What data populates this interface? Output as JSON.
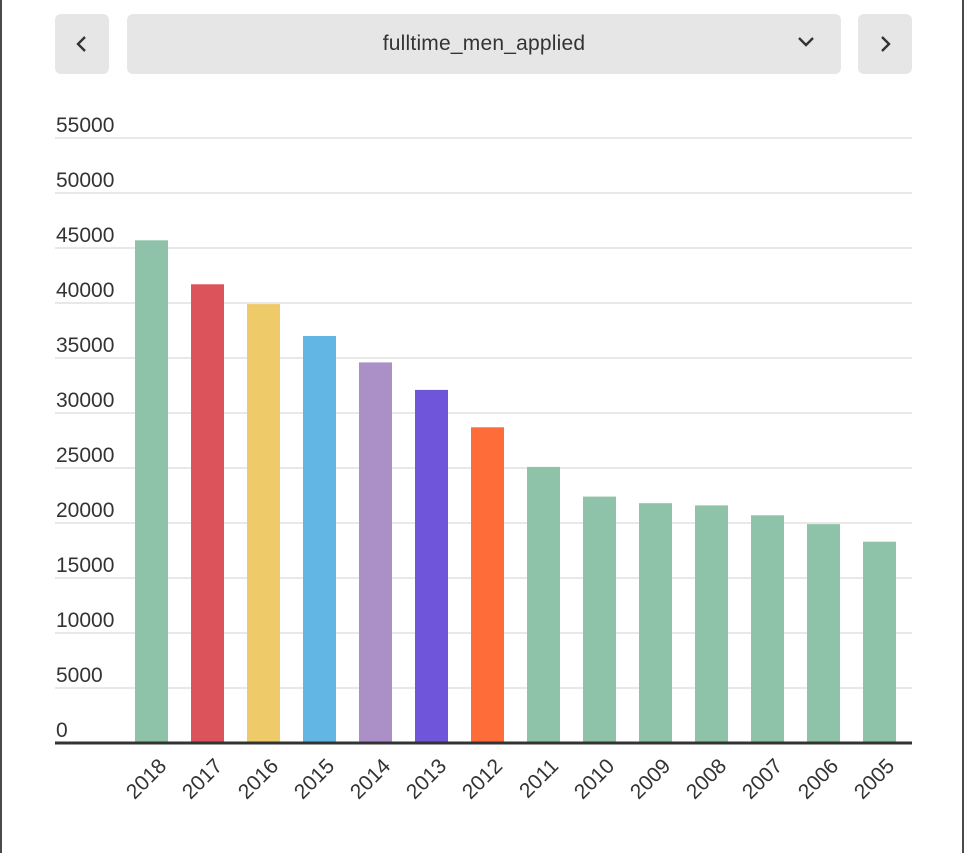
{
  "selector": {
    "selected": "fulltime_men_applied",
    "prev_icon": "chevron-left-icon",
    "next_icon": "chevron-right-icon",
    "dropdown_icon": "chevron-down-icon"
  },
  "chart_data": {
    "type": "bar",
    "categories": [
      "2018",
      "2017",
      "2016",
      "2015",
      "2014",
      "2013",
      "2012",
      "2011",
      "2010",
      "2009",
      "2008",
      "2007",
      "2006",
      "2005"
    ],
    "values": [
      45700,
      41700,
      39900,
      37000,
      34600,
      32100,
      28700,
      25100,
      22400,
      21800,
      21600,
      20700,
      19900,
      18300
    ],
    "colors": [
      "#8fc3a9",
      "#dc535b",
      "#efca69",
      "#62b6e4",
      "#ab90c8",
      "#6f55da",
      "#fe6c3a",
      "#8fc3a9",
      "#8fc3a9",
      "#8fc3a9",
      "#8fc3a9",
      "#8fc3a9",
      "#8fc3a9",
      "#8fc3a9"
    ],
    "yticks": [
      0,
      5000,
      10000,
      15000,
      20000,
      25000,
      30000,
      35000,
      40000,
      45000,
      50000,
      55000
    ],
    "ylim": [
      0,
      55000
    ],
    "title": "",
    "xlabel": "",
    "ylabel": "",
    "grid": true,
    "legend": "none"
  }
}
